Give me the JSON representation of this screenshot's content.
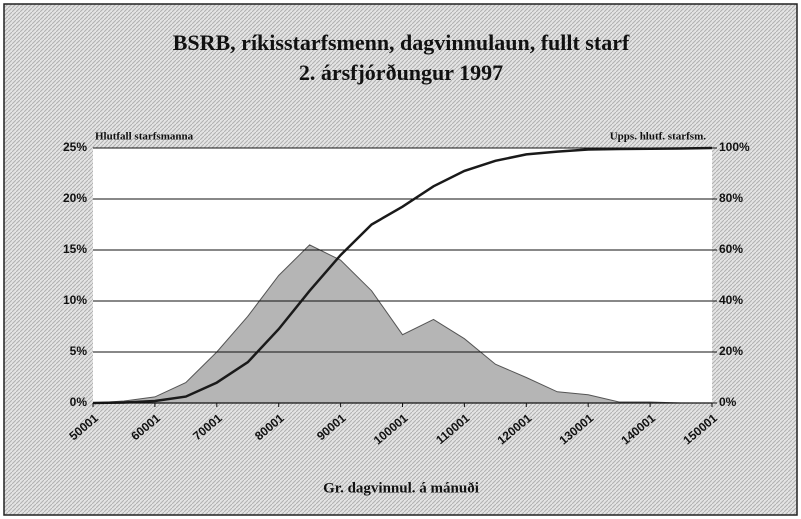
{
  "chart_data": {
    "type": "area",
    "title": "BSRB, ríkisstarfsmenn, dagvinnulaun, fullt starf",
    "subtitle": "2. ársfjórðungur 1997",
    "ylabel": "Hlutfall starfsmanna",
    "y2label": "Upps. hlutf. starfsm.",
    "xlabel": "Gr. dagvinnul. á mánuði",
    "x": [
      50001,
      55001,
      60001,
      65001,
      70001,
      75001,
      80001,
      85001,
      90001,
      95001,
      100001,
      105001,
      110001,
      115001,
      120001,
      125001,
      130001,
      135001,
      140001,
      145001,
      150001
    ],
    "series": [
      {
        "type": "area",
        "color": "#b5b5b5",
        "axis": "y",
        "values": [
          0,
          0.2,
          0.6,
          2,
          5,
          8.5,
          12.5,
          15.5,
          14,
          11,
          6.7,
          8.2,
          6.3,
          3.8,
          2.5,
          1.1,
          0.8,
          0.1,
          0.1,
          0,
          0
        ]
      },
      {
        "type": "line",
        "color": "#1a1a1a",
        "axis": "y2",
        "values": [
          0,
          0.2,
          0.8,
          2.5,
          8,
          16,
          29,
          44,
          58,
          70,
          77,
          85,
          91,
          95,
          97.5,
          98.6,
          99.4,
          99.6,
          99.7,
          99.8,
          100
        ]
      }
    ],
    "xlim": [
      50001,
      150001
    ],
    "xticks": [
      50001,
      60001,
      70001,
      80001,
      90001,
      100001,
      110001,
      120001,
      130001,
      140001,
      150001
    ],
    "ylim": [
      0,
      25
    ],
    "yticks": [
      {
        "value": 0,
        "label": "0%"
      },
      {
        "value": 5,
        "label": "5%"
      },
      {
        "value": 10,
        "label": "10%"
      },
      {
        "value": 15,
        "label": "15%"
      },
      {
        "value": 20,
        "label": "20%"
      },
      {
        "value": 25,
        "label": "25%"
      }
    ],
    "y2lim": [
      0,
      100
    ],
    "y2ticks": [
      {
        "value": 0,
        "label": "0%"
      },
      {
        "value": 20,
        "label": "20%"
      },
      {
        "value": 40,
        "label": "40%"
      },
      {
        "value": 60,
        "label": "60%"
      },
      {
        "value": 80,
        "label": "80%"
      },
      {
        "value": 100,
        "label": "100%"
      }
    ],
    "grid": true
  }
}
